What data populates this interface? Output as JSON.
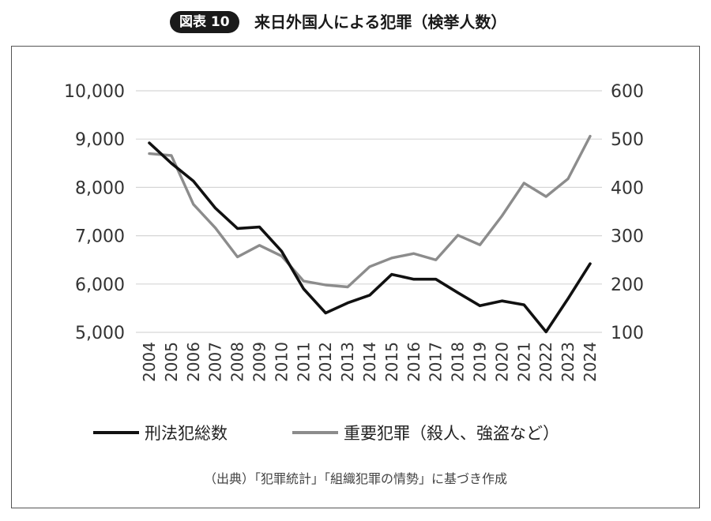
{
  "header": {
    "badge": "図表 10",
    "title": "来日外国人による犯罪（検挙人数）"
  },
  "source": "（出典）「犯罪統計」「組織犯罪の情勢」に基づき作成",
  "chart_data": {
    "type": "line",
    "x": [
      "2004",
      "2005",
      "2006",
      "2007",
      "2008",
      "2009",
      "2010",
      "2011",
      "2012",
      "2013",
      "2014",
      "2015",
      "2016",
      "2017",
      "2018",
      "2019",
      "2020",
      "2021",
      "2022",
      "2023",
      "2024"
    ],
    "y_left": {
      "ylim": [
        5000,
        10000
      ],
      "ticks": [
        5000,
        6000,
        7000,
        8000,
        9000,
        10000
      ],
      "tick_labels": [
        "5,000",
        "6,000",
        "7,000",
        "8,000",
        "9,000",
        "10,000"
      ]
    },
    "y_right": {
      "ylim": [
        100,
        600
      ],
      "ticks": [
        100,
        200,
        300,
        400,
        500,
        600
      ],
      "tick_labels": [
        "100",
        "200",
        "300",
        "400",
        "500",
        "600"
      ]
    },
    "grid": true,
    "legend": "bottom",
    "series": [
      {
        "name": "刑法犯総数",
        "axis": "left",
        "color": "#111111",
        "values": [
          8920,
          8500,
          8130,
          7570,
          7150,
          7180,
          6680,
          5900,
          5400,
          5610,
          5770,
          6200,
          6100,
          6100,
          5820,
          5550,
          5650,
          5570,
          5010,
          5700,
          6420
        ]
      },
      {
        "name": "重要犯罪（殺人、強盗など）",
        "axis": "right",
        "color": "#8c8c8c",
        "values": [
          470,
          466,
          365,
          316,
          256,
          280,
          258,
          206,
          198,
          194,
          236,
          254,
          263,
          250,
          301,
          281,
          341,
          409,
          381,
          418,
          506
        ]
      }
    ]
  }
}
